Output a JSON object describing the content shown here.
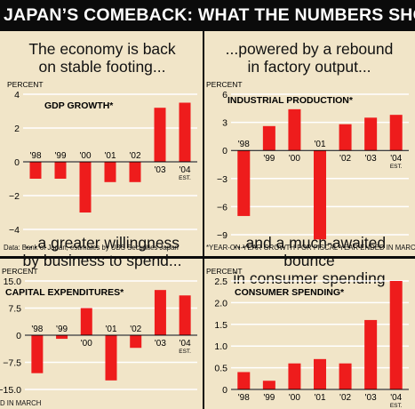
{
  "banner": {
    "title": "JAPAN’S COMEBACK: WHAT THE NUMBERS SHOW"
  },
  "headlines": {
    "gdp": "The economy is back\non stable footing...",
    "industrial": "...powered by a rebound\nin factory output...",
    "capex": "...a greater willingness\nby business to spend...",
    "consumer": "...and a much-awaited bounce\nin consumer spending"
  },
  "notes": {
    "source": "Data: Bank of Japan, estimates by UBS Securities Japan",
    "footnote": "*YEAR-ON-YEAR GROWTH FOR FISCAL YEAR ENDED IN MARCH",
    "cutoff": "D IN MARCH"
  },
  "colors": {
    "bar": "#ee1c1c",
    "gridline": "#ffffff",
    "background": "#f1e5c8",
    "banner": "#0b0b0b"
  },
  "chart_data": [
    {
      "id": "gdp",
      "type": "bar",
      "title": "GDP GROWTH*",
      "ylabel": "PERCENT",
      "categories": [
        "'98",
        "'99",
        "'00",
        "'01",
        "'02",
        "'03",
        "'04"
      ],
      "category_sub": [
        "",
        "",
        "",
        "",
        "",
        "",
        "EST."
      ],
      "values": [
        -1,
        -1,
        -3,
        -1.2,
        -1.2,
        3.2,
        3.5
      ],
      "ylim": [
        -4,
        4
      ],
      "yticks": [
        "4",
        "2",
        "0",
        "−2",
        "−4"
      ],
      "ytick_values": [
        4,
        2,
        0,
        -2,
        -4
      ],
      "grid": true,
      "label_position": "above-axis"
    },
    {
      "id": "industrial",
      "type": "bar",
      "title": "INDUSTRIAL PRODUCTION*",
      "ylabel": "PERCENT",
      "categories": [
        "'98",
        "'99",
        "'00",
        "'01",
        "'02",
        "'03",
        "'04"
      ],
      "category_sub": [
        "",
        "",
        "",
        "",
        "",
        "",
        "EST."
      ],
      "values": [
        -7,
        2.6,
        4.4,
        -9.5,
        2.8,
        3.5,
        3.8
      ],
      "ylim": [
        -9,
        6
      ],
      "yticks": [
        "6",
        "3",
        "0",
        "−3",
        "−6",
        "−9"
      ],
      "ytick_values": [
        6,
        3,
        0,
        -3,
        -6,
        -9
      ],
      "grid": true,
      "label_position": "opposite-bar"
    },
    {
      "id": "capex",
      "type": "bar",
      "title": "CAPITAL EXPENDITURES*",
      "ylabel": "PERCENT",
      "categories": [
        "'98",
        "'99",
        "'00",
        "'01",
        "'02",
        "'03",
        "'04"
      ],
      "category_sub": [
        "",
        "",
        "",
        "",
        "",
        "",
        "EST."
      ],
      "values": [
        -10.5,
        -1,
        7.5,
        -12.5,
        -3.5,
        12.5,
        11
      ],
      "ylim": [
        -15,
        15
      ],
      "yticks": [
        "15.0",
        "7.5",
        "0",
        "−7.5",
        "−15.0"
      ],
      "ytick_values": [
        15,
        7.5,
        0,
        -7.5,
        -15
      ],
      "grid": true,
      "label_position": "opposite-bar"
    },
    {
      "id": "consumer",
      "type": "bar",
      "title": "CONSUMER SPENDING*",
      "ylabel": "PERCENT",
      "categories": [
        "'98",
        "'99",
        "'00",
        "'01",
        "'02",
        "'03",
        "'04"
      ],
      "category_sub": [
        "",
        "",
        "",
        "",
        "",
        "",
        "EST."
      ],
      "values": [
        0.4,
        0.2,
        0.6,
        0.7,
        0.6,
        1.6,
        2.5
      ],
      "ylim": [
        0,
        2.5
      ],
      "yticks": [
        "2.5",
        "2.0",
        "1.5",
        "1.0",
        "0.5",
        "0"
      ],
      "ytick_values": [
        2.5,
        2.0,
        1.5,
        1.0,
        0.5,
        0
      ],
      "grid": true,
      "label_position": "below-axis"
    }
  ]
}
